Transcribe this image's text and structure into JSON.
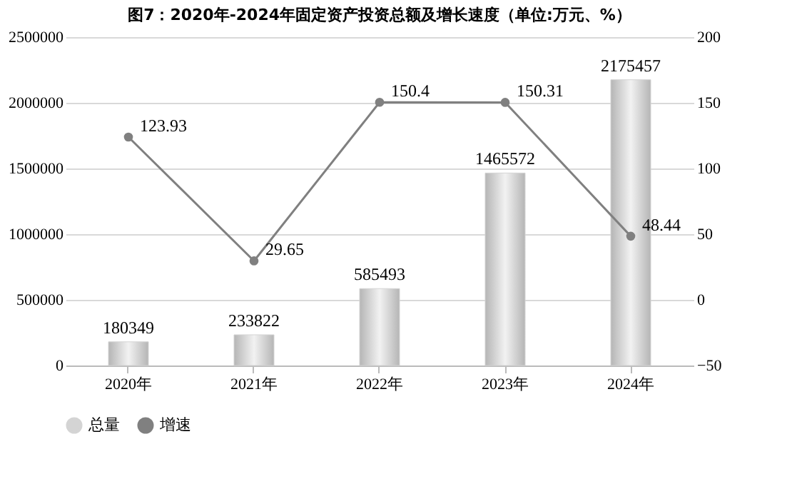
{
  "chart_data": {
    "type": "bar",
    "title": "图7：2020年-2024年固定资产投资总额及增长速度（单位:万元、%）",
    "categories": [
      "2020年",
      "2021年",
      "2022年",
      "2023年",
      "2024年"
    ],
    "series": [
      {
        "name": "总量",
        "color": "#d4d4d4",
        "values": [
          180349,
          233822,
          585493,
          1465572,
          2175457
        ]
      },
      {
        "name": "增速",
        "type": "line",
        "axis": "y2",
        "color": "#808080",
        "values": [
          123.93,
          29.65,
          150.4,
          150.31,
          48.44
        ]
      }
    ],
    "ylim": [
      0,
      2500000
    ],
    "yticks": [
      0,
      500000,
      1000000,
      1500000,
      2000000,
      2500000
    ],
    "y2lim": [
      -50,
      200
    ],
    "y2ticks": [
      -50,
      0,
      50,
      100,
      150,
      200
    ],
    "grid": true,
    "legend": "bottom",
    "marker": "circle",
    "data_labels": true
  }
}
